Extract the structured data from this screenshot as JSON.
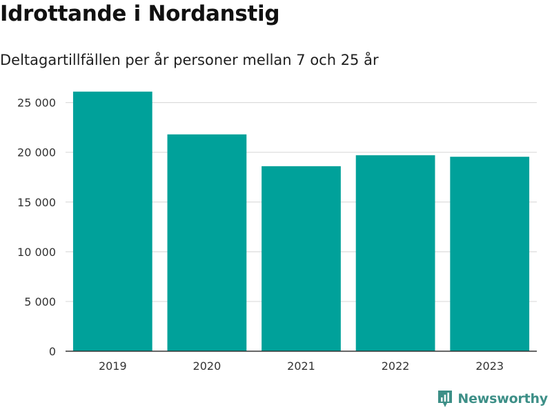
{
  "header": {
    "title": "Idrottande i Nordanstig",
    "subtitle": "Deltagartillfällen per år personer mellan 7 och 25 år"
  },
  "brand": {
    "name": "Newsworthy",
    "color": "#3d8f87",
    "icon": "newsworthy-chart-logo-icon"
  },
  "chart_data": {
    "type": "bar",
    "categories": [
      "2019",
      "2020",
      "2021",
      "2022",
      "2023"
    ],
    "values": [
      26100,
      21800,
      18600,
      19700,
      19550
    ],
    "yticks": [
      0,
      5000,
      10000,
      15000,
      20000,
      25000
    ],
    "ytick_labels": [
      "0",
      "5 000",
      "10 000",
      "15 000",
      "20 000",
      "25 000"
    ],
    "ylim": [
      0,
      26500
    ],
    "xlabel": "",
    "ylabel": "",
    "grid": true,
    "bar_color": "#00a19a"
  }
}
